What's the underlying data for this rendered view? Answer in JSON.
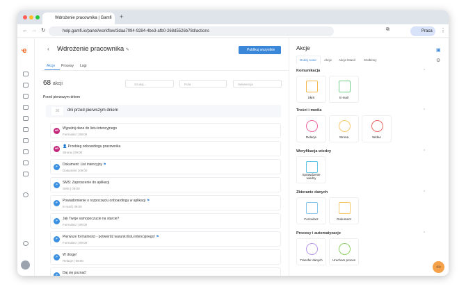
{
  "browser": {
    "tab_title": "Wdrożenie pracownika | Gamfi",
    "url": "help.gamfi.io/panel/workflow/3daa7094-9284-4be3-afb0-268d5526b78d/actions",
    "profile": "Praca"
  },
  "header": {
    "title": "Wdrożenie pracownika",
    "publish": "Publikuj wszystkie",
    "tabs": [
      "Akcje",
      "Procesy",
      "Logi"
    ]
  },
  "toolbar": {
    "count": "68",
    "count_label": "akcji",
    "search_placeholder": "Szukaj...",
    "role": "Rola",
    "sequence": "Sekwencja"
  },
  "section_title": "Przed pierwszym dniem",
  "group": {
    "days": "30",
    "label": "dni przed pierwszym dniem"
  },
  "actions": [
    {
      "title": "Wypełnij dane do listu intencyjnego",
      "meta": "Formularz | 09:00",
      "avatar": "HR",
      "color": "#c2267a",
      "flag": false
    },
    {
      "title": "👤 Przebieg onboardingu pracownika",
      "meta": "Strona | 09:00",
      "avatar": "HR",
      "color": "#c2267a",
      "flag": false
    },
    {
      "title": "Dokument: List intencyjny",
      "meta": "Dokument | 09:00",
      "avatar": "P",
      "color": "#3a8fe0",
      "flag": true
    },
    {
      "title": "SMS: Zaproszenie do aplikacji",
      "meta": "SMS | 09:00",
      "avatar": "P",
      "color": "#3a8fe0",
      "flag": false
    },
    {
      "title": "Powiadomienie o rozpoczęciu onboardingu w aplikacji",
      "meta": "E-mail | 09:00",
      "avatar": "P",
      "color": "#3a8fe0",
      "flag": true
    },
    {
      "title": "Jak Twoje samopoczucie na starcie?",
      "meta": "Formularz | 09:00",
      "avatar": "P",
      "color": "#3a8fe0",
      "flag": false
    },
    {
      "title": "Pierwsze formalności - potwierdź warunki listu intencyjnego!",
      "meta": "Formularz | 09:00",
      "avatar": "P",
      "color": "#3a8fe0",
      "flag": true
    },
    {
      "title": "W drogę!",
      "meta": "Relacje | 09:00",
      "avatar": "P",
      "color": "#3a8fe0",
      "flag": false
    },
    {
      "title": "Daj się poznać!",
      "meta": "",
      "avatar": "P",
      "color": "#3a8fe0",
      "flag": false
    }
  ],
  "panel": {
    "title": "Akcje",
    "tabs": [
      "Dodaj nowe",
      "Akcje",
      "Akcje lstanil",
      "Szablony"
    ],
    "sections": [
      {
        "name": "Komunikacja",
        "tiles": [
          {
            "label": "SMS",
            "icon": "sms-icon",
            "color": "#f5a623"
          },
          {
            "label": "E-mail",
            "icon": "email-icon",
            "color": "#4cc36a"
          }
        ]
      },
      {
        "name": "Treści i media",
        "tiles": [
          {
            "label": "Relacje",
            "icon": "stories-icon",
            "color": "#e8408a"
          },
          {
            "label": "Strona",
            "icon": "layers-icon",
            "color": "#f5b942"
          },
          {
            "label": "Wideo",
            "icon": "play-icon",
            "color": "#e8403a"
          }
        ]
      },
      {
        "name": "Weryfikacja wiedzy",
        "tiles": [
          {
            "label": "Sprawdzenie wiedzy",
            "icon": "lightbulb-icon",
            "color": "#3ab8e0"
          }
        ]
      },
      {
        "name": "Zbieranie danych",
        "tiles": [
          {
            "label": "Formularz",
            "icon": "form-icon",
            "color": "#6ab8e8"
          },
          {
            "label": "Dokument",
            "icon": "document-icon",
            "color": "#f5b942"
          }
        ]
      },
      {
        "name": "Procesy i automatyzacje",
        "tiles": [
          {
            "label": "Transfer danych",
            "icon": "transfer-icon",
            "color": "#a57be8"
          },
          {
            "label": "Uruchom proces",
            "icon": "run-process-icon",
            "color": "#6cc33a"
          }
        ]
      }
    ]
  }
}
